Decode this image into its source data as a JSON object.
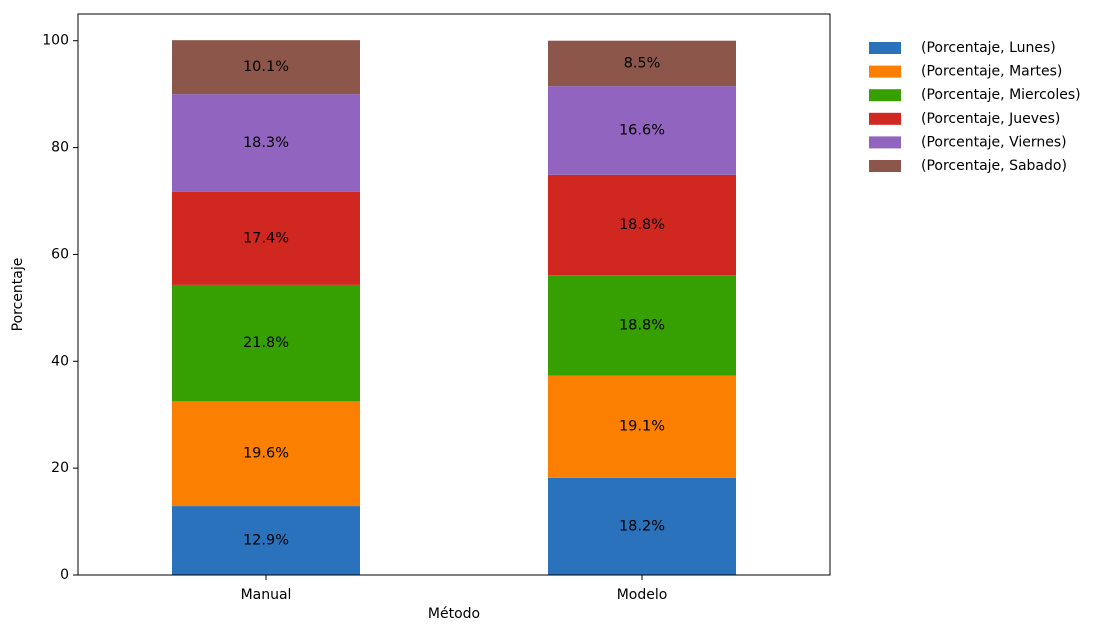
{
  "chart_data": {
    "type": "bar",
    "stacked": true,
    "categories": [
      "Manual",
      "Modelo"
    ],
    "series": [
      {
        "name": "(Porcentaje, Lunes)",
        "color": "#2a72bb",
        "values": [
          12.9,
          18.2
        ],
        "labels": [
          "12.9%",
          "18.2%"
        ]
      },
      {
        "name": "(Porcentaje, Martes)",
        "color": "#fb7f00",
        "values": [
          19.6,
          19.1
        ],
        "labels": [
          "19.6%",
          "19.1%"
        ]
      },
      {
        "name": "(Porcentaje, Miercoles)",
        "color": "#36a002",
        "values": [
          21.8,
          18.8
        ],
        "labels": [
          "21.8%",
          "18.8%"
        ]
      },
      {
        "name": "(Porcentaje, Jueves)",
        "color": "#d02820",
        "values": [
          17.4,
          18.8
        ],
        "labels": [
          "17.4%",
          "18.8%"
        ]
      },
      {
        "name": "(Porcentaje, Viernes)",
        "color": "#9064bf",
        "values": [
          18.3,
          16.6
        ],
        "labels": [
          "18.3%",
          "16.6%"
        ]
      },
      {
        "name": "(Porcentaje, Sabado)",
        "color": "#8c574a",
        "values": [
          10.1,
          8.5
        ],
        "labels": [
          "10.1%",
          "8.5%"
        ]
      }
    ],
    "xlabel": "Método",
    "ylabel": "Porcentaje",
    "ylim": [
      0,
      105
    ],
    "yticks": [
      0,
      20,
      40,
      60,
      80,
      100
    ],
    "grid": false,
    "legend_position": "outside-top-right"
  }
}
